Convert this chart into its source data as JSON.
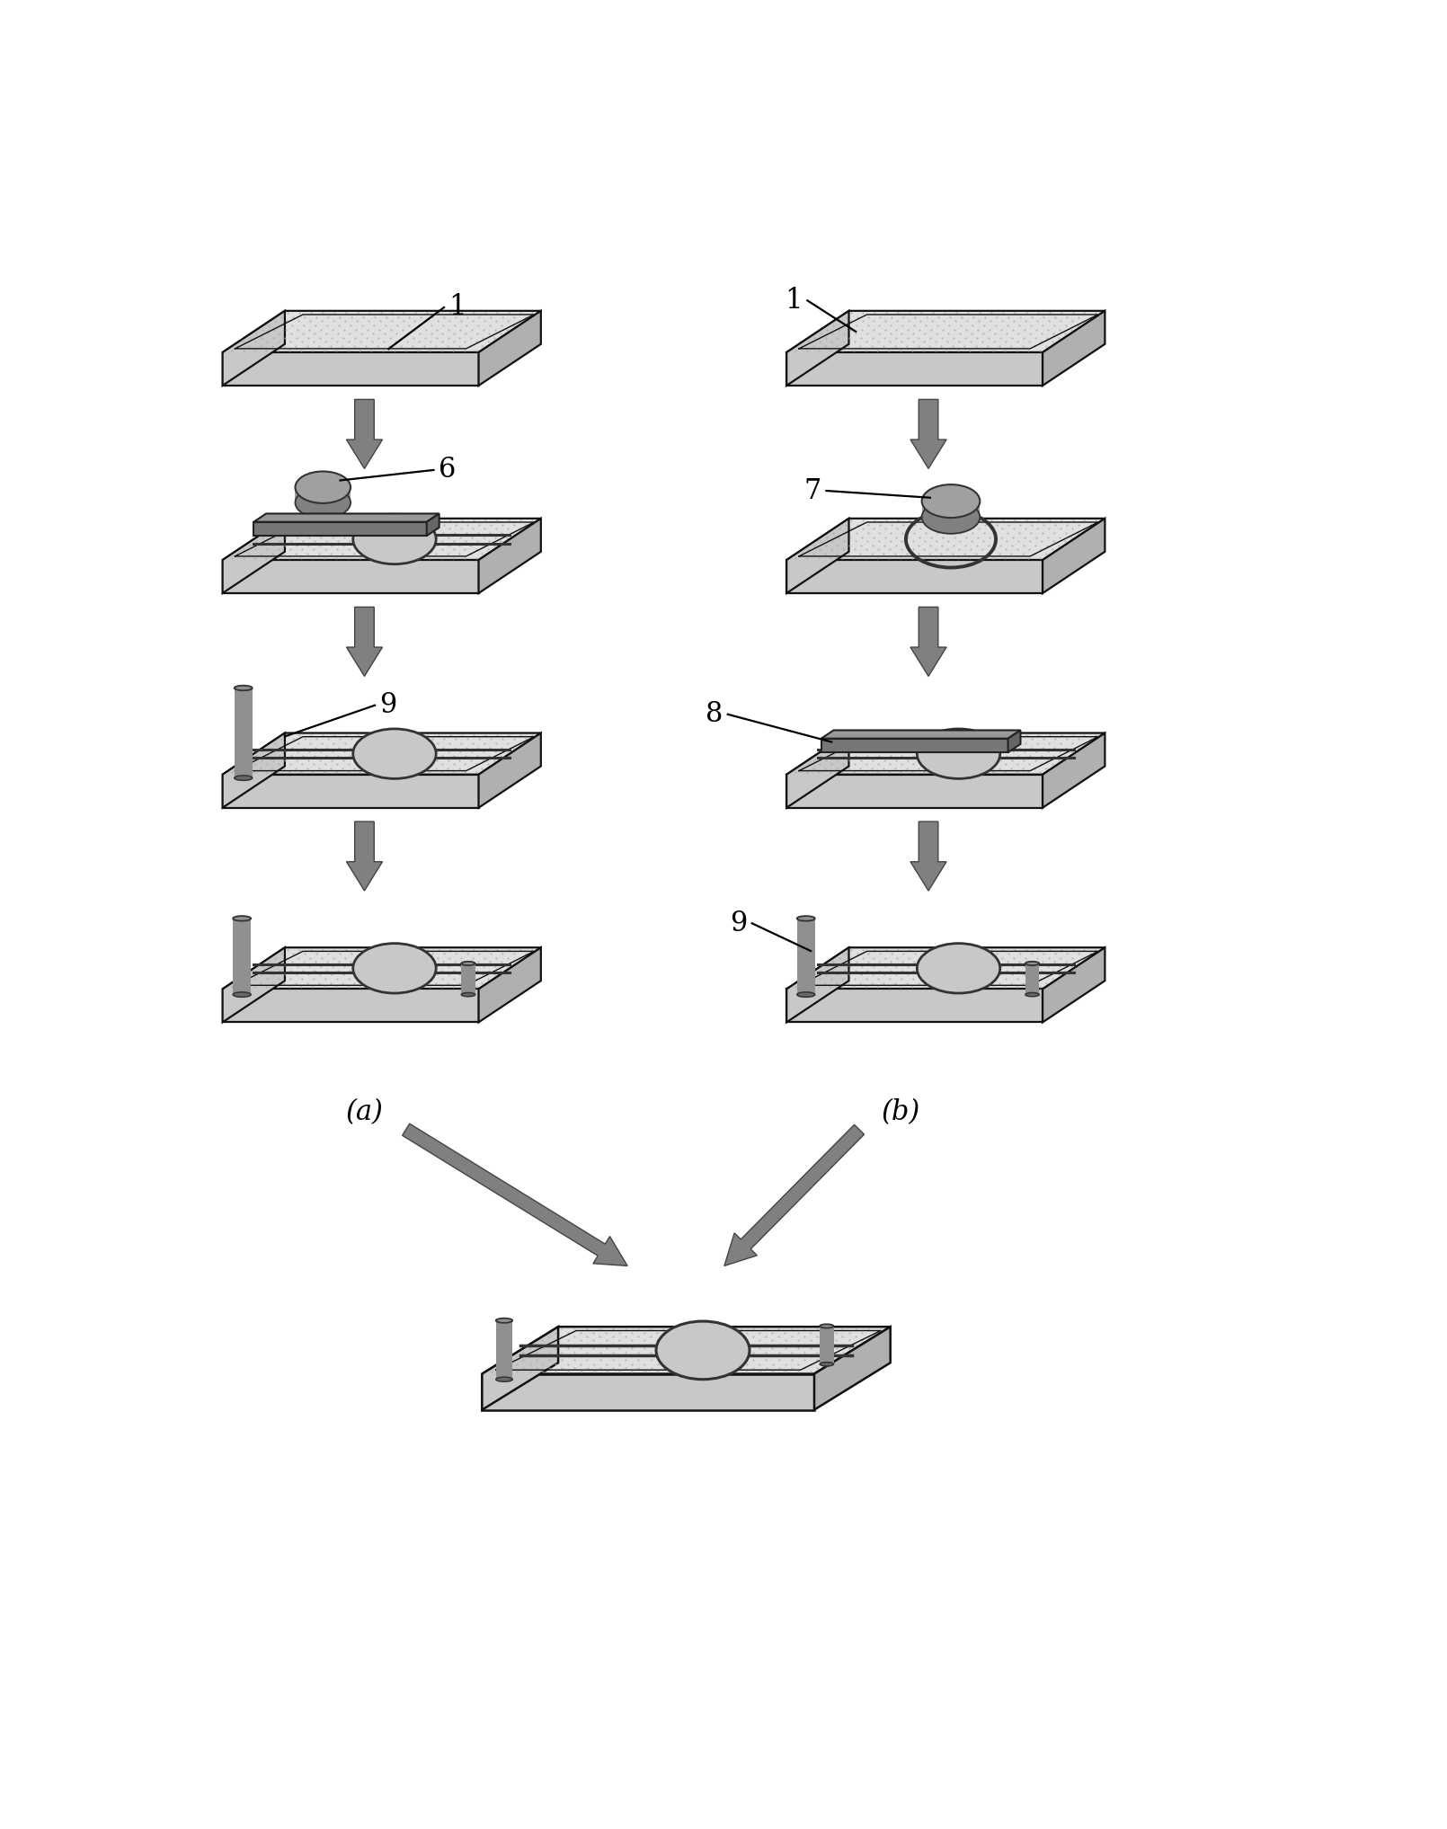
{
  "bg": "#ffffff",
  "chip_top": "#e0e0e0",
  "chip_left": "#c8c8c8",
  "chip_bottom": "#b0b0b0",
  "chip_edge": "#111111",
  "stipple": "#aaaaaa",
  "arrow_face": "#808080",
  "arrow_edge": "#444444",
  "ch_color": "#333333",
  "ell_face": "#c8c8c8",
  "ell_edge": "#333333",
  "disk_face": "#a0a0a0",
  "disk_dark": "#808080",
  "disk_edge": "#333333",
  "bar_top": "#999999",
  "bar_face": "#777777",
  "bar_right": "#666666",
  "bar_edge": "#222222",
  "pin_face": "#909090",
  "pin_dark": "#686868",
  "pin_edge": "#333333"
}
